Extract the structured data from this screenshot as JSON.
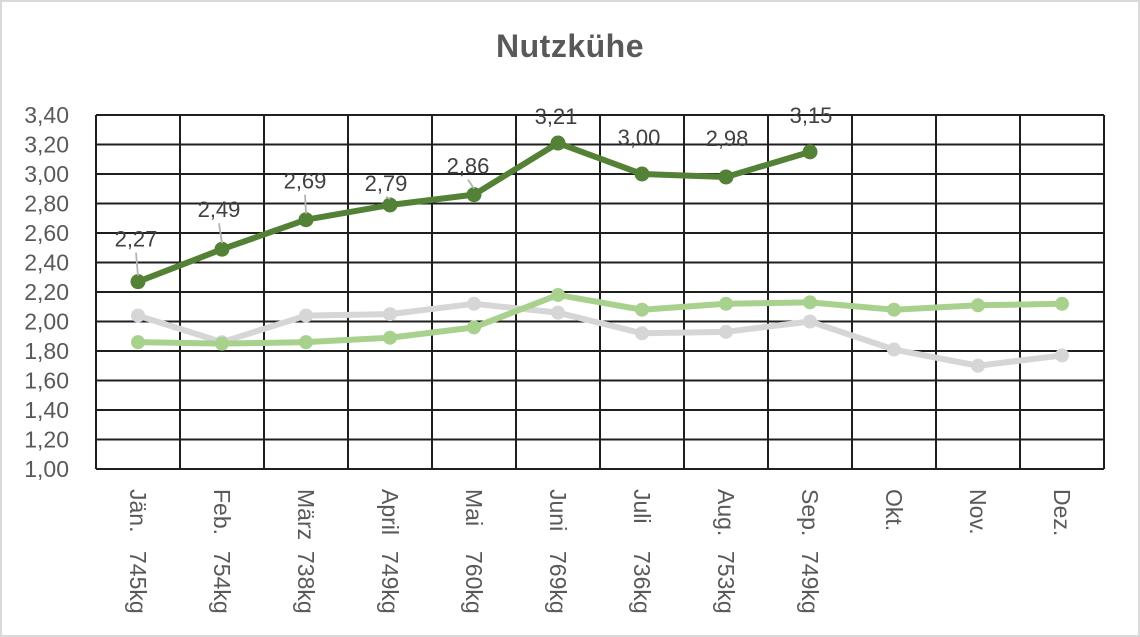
{
  "title": "Nutzkühe",
  "colors": {
    "grid": "#1f1f1f",
    "axis_text": "#595959",
    "data_label": "#404040",
    "leader": "#b3b3b3",
    "title": "#595959",
    "page_border": "#d9d9d9",
    "background": "#ffffff"
  },
  "chart_data": {
    "type": "line",
    "title": "Nutzkühe",
    "grid": true,
    "legend": "none",
    "y_axis": {
      "min": 1.0,
      "max": 3.4,
      "step": 0.2,
      "tick_labels": [
        "3,40",
        "3,20",
        "3,00",
        "2,80",
        "2,60",
        "2,40",
        "2,20",
        "2,00",
        "1,80",
        "1,60",
        "1,40",
        "1,20",
        "1,00"
      ]
    },
    "categories": [
      {
        "month": "Jän.",
        "weight": "745kg"
      },
      {
        "month": "Feb.",
        "weight": "754kg"
      },
      {
        "month": "März",
        "weight": "738kg"
      },
      {
        "month": "April",
        "weight": "749kg"
      },
      {
        "month": "Mai",
        "weight": "760kg"
      },
      {
        "month": "Juni",
        "weight": "769kg"
      },
      {
        "month": "Juli",
        "weight": "736kg"
      },
      {
        "month": "Aug.",
        "weight": "753kg"
      },
      {
        "month": "Sep.",
        "weight": "749kg"
      },
      {
        "month": "Okt.",
        "weight": ""
      },
      {
        "month": "Nov.",
        "weight": ""
      },
      {
        "month": "Dez.",
        "weight": ""
      }
    ],
    "series": [
      {
        "name": "dark-green",
        "color": "#538135",
        "values": [
          2.27,
          2.49,
          2.69,
          2.79,
          2.86,
          3.21,
          3.0,
          2.98,
          3.15,
          null,
          null,
          null
        ],
        "data_labels": [
          "2,27",
          "2,49",
          "2,69",
          "2,79",
          "2,86",
          "3,21",
          "3,00",
          "2,98",
          "3,15"
        ],
        "label_offsets": [
          {
            "dx": -2,
            "dy": -43,
            "leader": true
          },
          {
            "dx": -3,
            "dy": -40,
            "leader": true
          },
          {
            "dx": -1,
            "dy": -39,
            "leader": true
          },
          {
            "dx": -4,
            "dy": -22,
            "leader": true
          },
          {
            "dx": -6,
            "dy": -29,
            "leader": true
          },
          {
            "dx": -2,
            "dy": -27,
            "leader": false
          },
          {
            "dx": -3,
            "dy": -37,
            "leader": false
          },
          {
            "dx": 1,
            "dy": -39,
            "leader": false
          },
          {
            "dx": 1,
            "dy": -37,
            "leader": false
          }
        ]
      },
      {
        "name": "light-green",
        "color": "#a9d18e",
        "values": [
          1.86,
          1.85,
          1.86,
          1.89,
          1.96,
          2.18,
          2.08,
          2.12,
          2.13,
          2.08,
          2.11,
          2.12
        ]
      },
      {
        "name": "gray",
        "color": "#d6d6d6",
        "values": [
          2.04,
          1.86,
          2.04,
          2.05,
          2.12,
          2.06,
          1.92,
          1.93,
          2.0,
          1.81,
          1.7,
          1.77
        ]
      }
    ]
  }
}
